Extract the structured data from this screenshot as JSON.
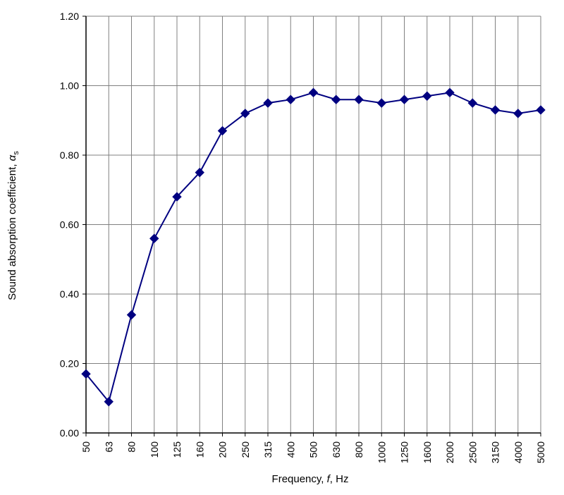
{
  "chart_data": {
    "type": "line",
    "title": "",
    "xlabel": {
      "prefix": "Frequency, ",
      "var": "f",
      "suffix": ", Hz"
    },
    "ylabel": {
      "prefix": "Sound absorption coefficient, ",
      "var": "α",
      "sub": "s"
    },
    "ylim": [
      0,
      1.2
    ],
    "yticks": [
      "0.00",
      "0.20",
      "0.40",
      "0.60",
      "0.80",
      "1.00",
      "1.20"
    ],
    "grid": true,
    "legend": "none",
    "categories": [
      "50",
      "63",
      "80",
      "100",
      "125",
      "160",
      "200",
      "250",
      "315",
      "400",
      "500",
      "630",
      "800",
      "1000",
      "1250",
      "1600",
      "2000",
      "2500",
      "3150",
      "4000",
      "5000"
    ],
    "series": [
      {
        "color": "#000080",
        "marker": "diamond",
        "values": [
          0.17,
          0.09,
          0.34,
          0.56,
          0.68,
          0.75,
          0.87,
          0.92,
          0.95,
          0.96,
          0.98,
          0.96,
          0.96,
          0.95,
          0.96,
          0.97,
          0.98,
          0.95,
          0.93,
          0.92,
          0.93
        ]
      }
    ]
  }
}
